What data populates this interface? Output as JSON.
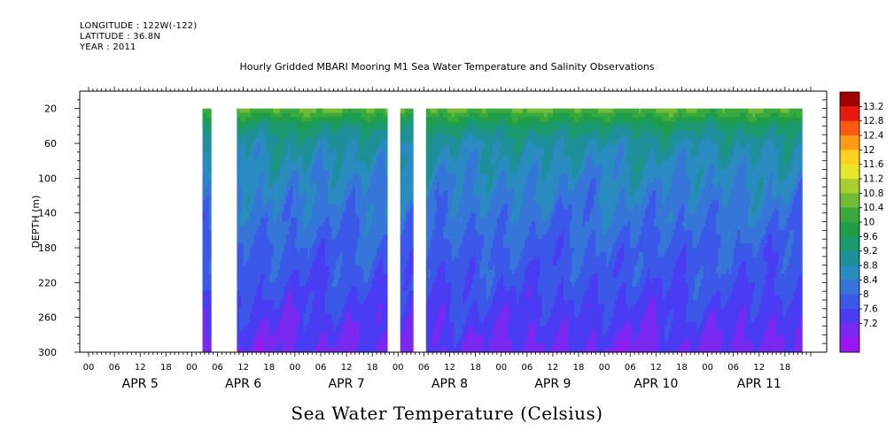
{
  "header": {
    "longitude": "LONGITUDE : 122W(-122)",
    "latitude": "LATITUDE : 36.8N",
    "year": "YEAR : 2011"
  },
  "chart_data": {
    "type": "heatmap",
    "title": "Hourly Gridded MBARI Mooring M1 Sea Water Temperature and Salinity Observations",
    "xlabel": "Sea Water Temperature (Celsius)",
    "ylabel": "DEPTH (m)",
    "ylim": [
      300,
      0
    ],
    "yticks": [
      20,
      60,
      100,
      140,
      180,
      220,
      260,
      300
    ],
    "xlim_hours": [
      0,
      168
    ],
    "hour_ticks": [
      "00",
      "06",
      "12",
      "18",
      "00",
      "06",
      "12",
      "18",
      "00",
      "06",
      "12",
      "18",
      "00",
      "06",
      "12",
      "18",
      "00",
      "06",
      "12",
      "18",
      "00",
      "06",
      "12",
      "18",
      "00",
      "06",
      "12",
      "18"
    ],
    "day_labels": [
      "APR  5",
      "APR  6",
      "APR  7",
      "APR  8",
      "APR  9",
      "APR 10",
      "APR 11"
    ],
    "data_depth_range": [
      20,
      300
    ],
    "data_coverage_hours": [
      [
        26.5,
        28.5
      ],
      [
        34.5,
        69.5
      ],
      [
        72.5,
        75.5
      ],
      [
        78.5,
        166.0
      ]
    ],
    "colorbar": {
      "levels": [
        7.2,
        7.6,
        8,
        8.4,
        8.8,
        9.2,
        9.6,
        10,
        10.4,
        10.8,
        11.2,
        11.6,
        12,
        12.4,
        12.8,
        13.2
      ],
      "labels": [
        "13.2",
        "12.8",
        "12.4",
        "12",
        "11.6",
        "11.2",
        "10.8",
        "10.4",
        "10",
        "9.6",
        "9.2",
        "8.8",
        "8.4",
        "8",
        "7.6",
        "7.2"
      ],
      "colors": [
        "#9b16f2",
        "#7a28f0",
        "#4a3cf2",
        "#3b58e8",
        "#3676d8",
        "#2a8bc0",
        "#1f8f9a",
        "#1a9a6e",
        "#1f9e4a",
        "#3aa93c",
        "#70bc35",
        "#a8cf2e",
        "#e8e82a",
        "#ffd020",
        "#ff9a18",
        "#ff5a10",
        "#e81a10",
        "#a00000"
      ]
    },
    "profile": {
      "depths": [
        20,
        40,
        60,
        100,
        140,
        180,
        220,
        260,
        300
      ],
      "temperature": [
        10.9,
        9.8,
        9.3,
        8.9,
        8.6,
        8.3,
        8.1,
        7.8,
        7.5
      ]
    }
  }
}
